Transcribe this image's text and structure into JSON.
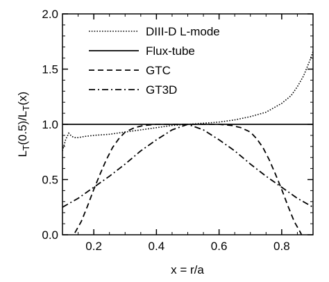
{
  "chart_data": {
    "type": "line",
    "xlabel": "x = r/a",
    "ylabel_main": "L",
    "ylabel_sub1": "T",
    "ylabel_mid": "(0.5)/L",
    "ylabel_sub2": "T",
    "ylabel_end": "(x)",
    "xlim": [
      0.1,
      0.9
    ],
    "ylim": [
      0.0,
      2.0
    ],
    "x_ticks": [
      0.2,
      0.4,
      0.6,
      0.8
    ],
    "x_tick_labels": [
      "0.2",
      "0.4",
      "0.6",
      "0.8"
    ],
    "y_ticks": [
      0.0,
      0.5,
      1.0,
      1.5,
      2.0
    ],
    "y_tick_labels": [
      "0.0",
      "0.5",
      "1.0",
      "1.5",
      "2.0"
    ],
    "grid": false,
    "legend_position": "top-center",
    "series": [
      {
        "name": "DIII-D L-mode",
        "dash": "dotted",
        "x": [
          0.1,
          0.11,
          0.12,
          0.13,
          0.14,
          0.15,
          0.17,
          0.2,
          0.25,
          0.3,
          0.35,
          0.4,
          0.45,
          0.5,
          0.55,
          0.6,
          0.65,
          0.7,
          0.75,
          0.8,
          0.83,
          0.85,
          0.87,
          0.88,
          0.89,
          0.9
        ],
        "y": [
          0.76,
          0.86,
          0.92,
          0.89,
          0.88,
          0.88,
          0.89,
          0.9,
          0.91,
          0.93,
          0.95,
          0.97,
          0.99,
          1.0,
          1.01,
          1.02,
          1.04,
          1.07,
          1.11,
          1.19,
          1.26,
          1.34,
          1.44,
          1.51,
          1.58,
          1.66
        ]
      },
      {
        "name": "Flux-tube",
        "dash": "solid",
        "x": [
          0.1,
          0.9
        ],
        "y": [
          1.0,
          1.0
        ]
      },
      {
        "name": "GTC",
        "dash": "dashed",
        "x": [
          0.1,
          0.12,
          0.14,
          0.16,
          0.18,
          0.2,
          0.22,
          0.24,
          0.26,
          0.28,
          0.3,
          0.33,
          0.36,
          0.4,
          0.45,
          0.5,
          0.55,
          0.6,
          0.64,
          0.67,
          0.7,
          0.72,
          0.74,
          0.76,
          0.78,
          0.8,
          0.82,
          0.84,
          0.86,
          0.88,
          0.9
        ],
        "y": [
          -0.2,
          -0.1,
          0.02,
          0.12,
          0.26,
          0.41,
          0.55,
          0.68,
          0.79,
          0.87,
          0.93,
          0.97,
          0.99,
          1.0,
          1.0,
          1.0,
          1.0,
          1.0,
          0.99,
          0.97,
          0.93,
          0.87,
          0.79,
          0.68,
          0.55,
          0.41,
          0.26,
          0.12,
          0.02,
          -0.1,
          -0.2
        ]
      },
      {
        "name": "GT3D",
        "dash": "dash-dot",
        "x": [
          0.1,
          0.15,
          0.2,
          0.25,
          0.3,
          0.35,
          0.4,
          0.45,
          0.5,
          0.55,
          0.6,
          0.65,
          0.7,
          0.75,
          0.8,
          0.85,
          0.9
        ],
        "y": [
          0.25,
          0.33,
          0.43,
          0.53,
          0.64,
          0.76,
          0.86,
          0.95,
          1.0,
          0.95,
          0.86,
          0.76,
          0.64,
          0.53,
          0.43,
          0.33,
          0.25
        ]
      }
    ]
  }
}
